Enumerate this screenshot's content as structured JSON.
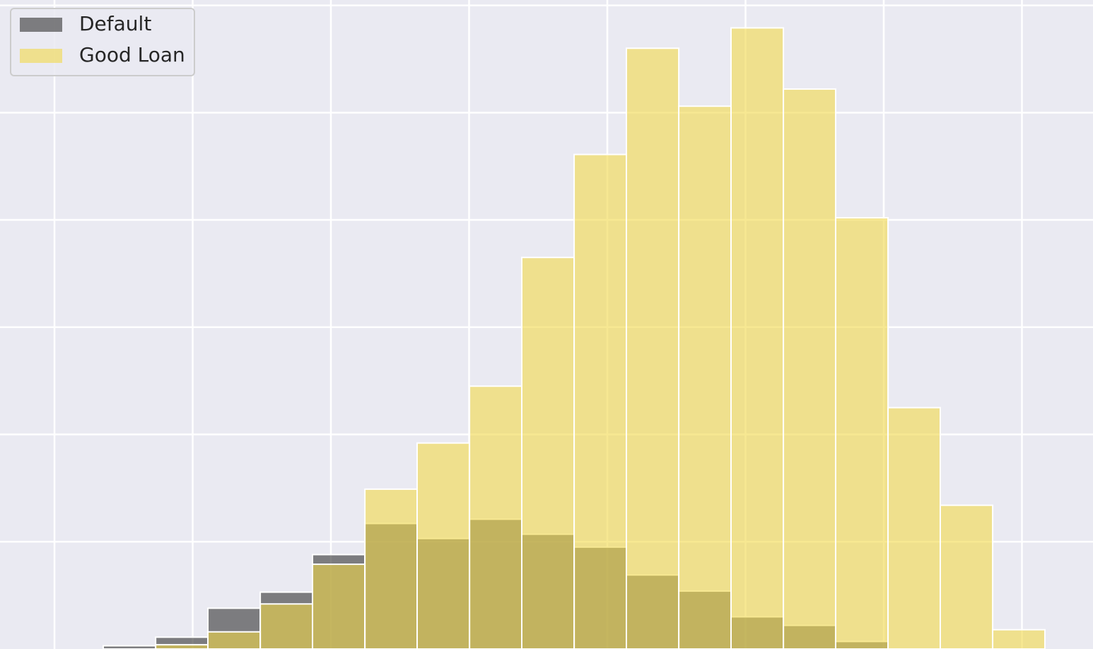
{
  "chart_data": {
    "type": "histogram",
    "bins": [
      0.353,
      0.732,
      1.11,
      1.489,
      1.867,
      2.246,
      2.624,
      3.003,
      3.381,
      3.76,
      4.138,
      4.517,
      4.895,
      5.274,
      5.652,
      6.031,
      6.409,
      6.788,
      7.166
    ],
    "series": [
      {
        "name": "Default",
        "color": "#404040",
        "opacity": 0.65,
        "values": [
          0.03,
          0.11,
          0.38,
          0.53,
          0.88,
          1.17,
          1.03,
          1.21,
          1.07,
          0.95,
          0.69,
          0.54,
          0.3,
          0.22,
          0.07,
          0,
          0,
          0
        ]
      },
      {
        "name": "Good Loan",
        "color": "#f2d84a",
        "opacity": 0.6,
        "values": [
          0,
          0.04,
          0.16,
          0.42,
          0.79,
          1.49,
          1.92,
          2.45,
          3.65,
          4.61,
          5.6,
          5.06,
          5.79,
          5.22,
          4.02,
          2.25,
          1.34,
          0.18
        ]
      }
    ],
    "xlim": [
      -0.394,
      7.514
    ],
    "xticks": [
      0,
      1,
      2,
      3,
      4,
      5,
      6,
      7
    ],
    "ylim": [
      0,
      6.05
    ],
    "yticks": [
      1,
      2,
      3,
      4,
      5,
      6
    ],
    "grid": true,
    "legend": "upper left"
  }
}
